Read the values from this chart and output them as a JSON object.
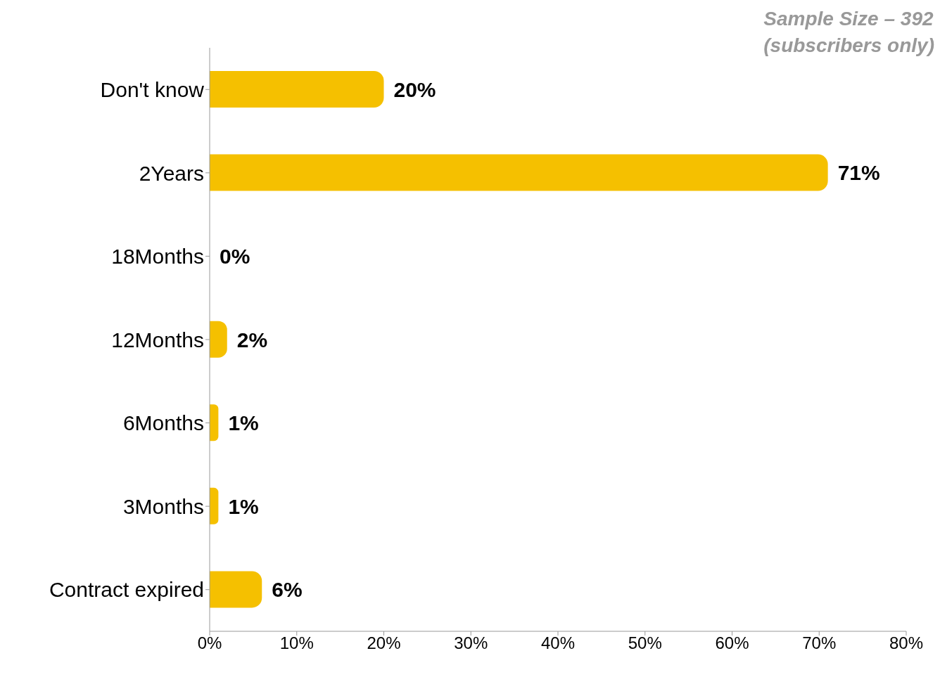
{
  "chart_data": {
    "type": "bar",
    "orientation": "horizontal",
    "categories": [
      "Don't know",
      "2Years",
      "18Months",
      "12Months",
      "6Months",
      "3Months",
      "Contract expired"
    ],
    "values": [
      20,
      71,
      0,
      2,
      1,
      1,
      6
    ],
    "value_labels": [
      "20%",
      "71%",
      "0%",
      "2%",
      "1%",
      "1%",
      "6%"
    ],
    "color": "#f5c000",
    "xlim": [
      0,
      80
    ],
    "xticks": [
      {
        "value": 0,
        "label": "0%"
      },
      {
        "value": 10,
        "label": "10%"
      },
      {
        "value": 20,
        "label": "20%"
      },
      {
        "value": 30,
        "label": "30%"
      },
      {
        "value": 40,
        "label": "40%"
      },
      {
        "value": 50,
        "label": "50%"
      },
      {
        "value": 60,
        "label": "60%"
      },
      {
        "value": 70,
        "label": "70%"
      },
      {
        "value": 80,
        "label": "80%"
      }
    ],
    "annotations": [
      "Sample Size – 392",
      "(subscribers only)"
    ],
    "grid": false,
    "legend": false
  }
}
